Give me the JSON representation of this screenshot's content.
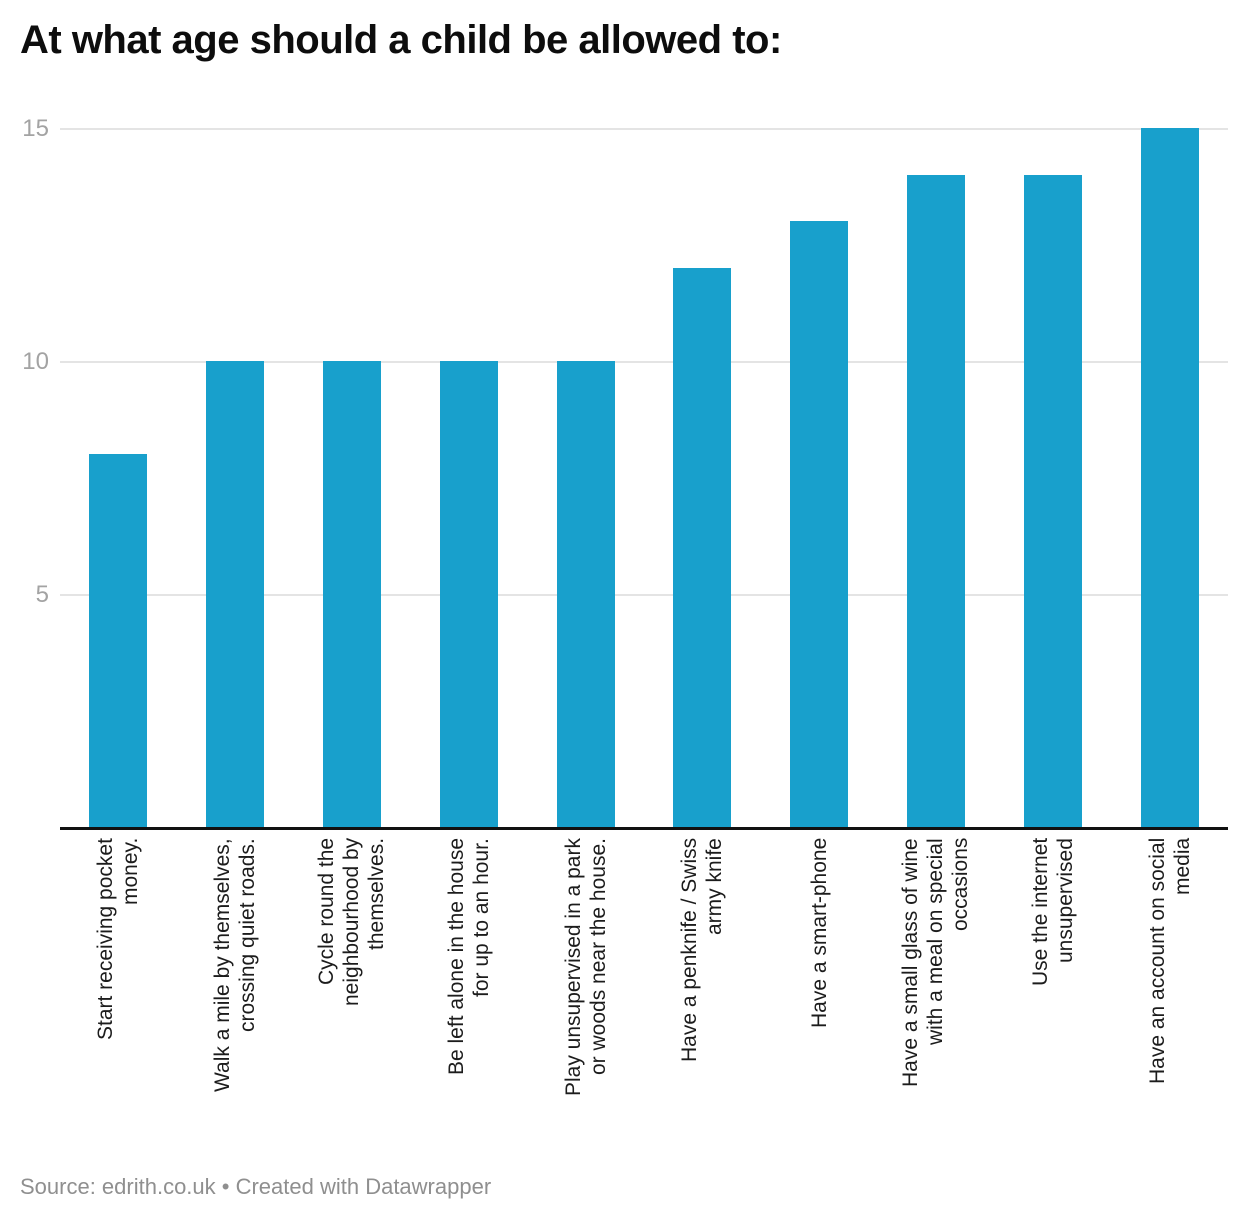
{
  "title": "At what age should a child be allowed to:",
  "footer": {
    "text": "Source: edrith.co.uk • Created with Datawrapper"
  },
  "colors": {
    "bar": "#18a0cc",
    "gridline": "#e4e4e4",
    "axis_line": "#111111",
    "tick_text": "#a3a3a3",
    "label_text": "#1c1c1c",
    "footer_text": "#8f8f8f",
    "title_text": "#0d0d0d"
  },
  "chart_data": {
    "type": "bar",
    "title": "At what age should a child be allowed to:",
    "categories": [
      "Start receiving pocket money.",
      "Walk a mile by themselves, crossing quiet roads.",
      "Cycle round the neighbourhood by themselves.",
      "Be left alone in the house for up to an hour.",
      "Play unsupervised in a park or woods near the house.",
      "Have a penknife / Swiss army knife",
      "Have a smart-phone",
      "Have a small glass of wine with a meal on special occasions",
      "Use the internet unsupervised",
      "Have an account on social media"
    ],
    "category_lines": [
      [
        "Start receiving pocket",
        "money."
      ],
      [
        "Walk a mile by themselves,",
        "crossing quiet roads."
      ],
      [
        "Cycle round the",
        "neighbourhood by",
        "themselves."
      ],
      [
        "Be left alone in the house",
        "for up to an hour."
      ],
      [
        "Play unsupervised in a park",
        "or woods near the house."
      ],
      [
        "Have a penknife / Swiss",
        "army knife"
      ],
      [
        "Have a smart-phone"
      ],
      [
        "Have a small glass of wine",
        "with a meal on special",
        "occasions"
      ],
      [
        "Use the internet",
        "unsupervised"
      ],
      [
        "Have an account on social",
        "media"
      ]
    ],
    "values": [
      8,
      10,
      10,
      10,
      10,
      12,
      13,
      14,
      14,
      15
    ],
    "xlabel": "",
    "ylabel": "",
    "yticks": [
      15,
      10,
      5
    ],
    "ylim": [
      0,
      15
    ],
    "grid": "horizontal",
    "legend": "none",
    "bar_color": "#18a0cc"
  }
}
